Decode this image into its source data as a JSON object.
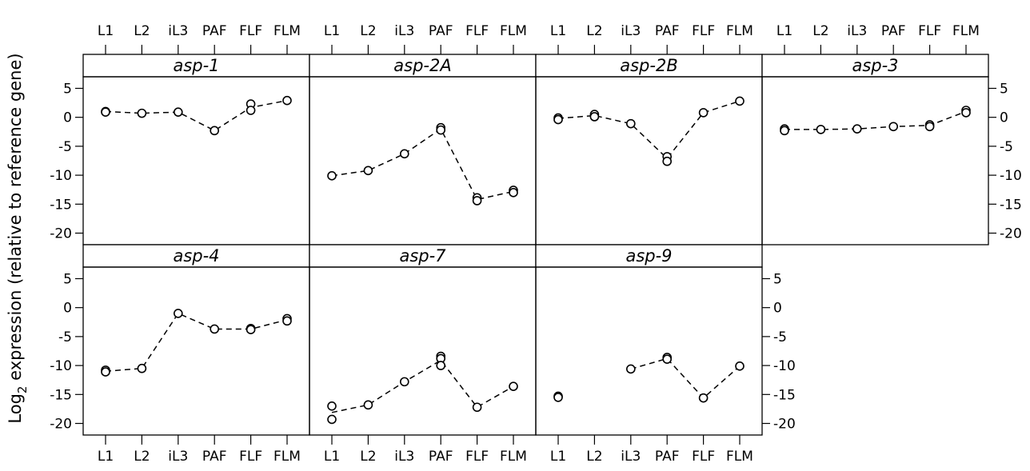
{
  "chart_data": {
    "type": "scatter",
    "ylabel": "Log",
    "ylabel_sub": "2",
    "ylabel_rest": " expression (relative to reference gene)",
    "categories": [
      "L1",
      "L2",
      "iL3",
      "PAF",
      "FLF",
      "FLM"
    ],
    "yticks": [
      5,
      0,
      -5,
      -10,
      -15,
      -20
    ],
    "ylim": [
      -22,
      7
    ],
    "line_style": "dashed",
    "marker": "open-circle",
    "panels": [
      {
        "name": "asp-1",
        "points": [
          [
            0,
            1.0
          ],
          [
            0,
            0.9
          ],
          [
            1,
            0.7
          ],
          [
            2,
            0.9
          ],
          [
            3,
            -2.3
          ],
          [
            4,
            2.3
          ],
          [
            4,
            1.2
          ],
          [
            5,
            2.9
          ]
        ],
        "line": [
          [
            0,
            1.0
          ],
          [
            1,
            0.7
          ],
          [
            2,
            0.9
          ],
          [
            3,
            -2.3
          ],
          [
            4,
            1.7
          ],
          [
            5,
            2.9
          ]
        ]
      },
      {
        "name": "asp-2A",
        "points": [
          [
            0,
            -10.1
          ],
          [
            1,
            -9.2
          ],
          [
            2,
            -6.3
          ],
          [
            3,
            -1.8
          ],
          [
            3,
            -2.2
          ],
          [
            4,
            -13.9
          ],
          [
            4,
            -14.4
          ],
          [
            5,
            -12.6
          ],
          [
            5,
            -13.0
          ]
        ],
        "line": [
          [
            0,
            -10.1
          ],
          [
            1,
            -9.2
          ],
          [
            2,
            -6.3
          ],
          [
            3,
            -2.0
          ],
          [
            4,
            -14.2
          ],
          [
            5,
            -12.8
          ]
        ]
      },
      {
        "name": "asp-2B",
        "points": [
          [
            0,
            -0.1
          ],
          [
            0,
            -0.4
          ],
          [
            1,
            0.5
          ],
          [
            1,
            0.1
          ],
          [
            2,
            -1.1
          ],
          [
            3,
            -6.8
          ],
          [
            3,
            -7.6
          ],
          [
            4,
            0.8
          ],
          [
            5,
            2.8
          ]
        ],
        "line": [
          [
            0,
            -0.2
          ],
          [
            1,
            0.3
          ],
          [
            2,
            -1.1
          ],
          [
            3,
            -7.1
          ],
          [
            4,
            0.8
          ],
          [
            5,
            2.8
          ]
        ]
      },
      {
        "name": "asp-3",
        "points": [
          [
            0,
            -2.0
          ],
          [
            0,
            -2.3
          ],
          [
            1,
            -2.1
          ],
          [
            2,
            -2.0
          ],
          [
            3,
            -1.6
          ],
          [
            4,
            -1.3
          ],
          [
            4,
            -1.6
          ],
          [
            5,
            1.2
          ],
          [
            5,
            0.8
          ]
        ],
        "line": [
          [
            0,
            -2.1
          ],
          [
            1,
            -2.1
          ],
          [
            2,
            -2.0
          ],
          [
            3,
            -1.6
          ],
          [
            4,
            -1.4
          ],
          [
            5,
            1.0
          ]
        ]
      },
      {
        "name": "asp-4",
        "points": [
          [
            0,
            -10.8
          ],
          [
            0,
            -11.1
          ],
          [
            1,
            -10.5
          ],
          [
            2,
            -1.0
          ],
          [
            3,
            -3.7
          ],
          [
            4,
            -3.6
          ],
          [
            4,
            -3.8
          ],
          [
            5,
            -1.9
          ],
          [
            5,
            -2.3
          ]
        ],
        "line": [
          [
            0,
            -11.0
          ],
          [
            1,
            -10.5
          ],
          [
            2,
            -1.0
          ],
          [
            3,
            -3.7
          ],
          [
            4,
            -3.7
          ],
          [
            5,
            -2.1
          ]
        ]
      },
      {
        "name": "asp-7",
        "points": [
          [
            0,
            -17.0
          ],
          [
            0,
            -19.3
          ],
          [
            1,
            -16.8
          ],
          [
            2,
            -12.8
          ],
          [
            3,
            -8.4
          ],
          [
            3,
            -8.8
          ],
          [
            3,
            -10.0
          ],
          [
            4,
            -17.2
          ],
          [
            5,
            -13.6
          ]
        ],
        "line": [
          [
            0,
            -18.1
          ],
          [
            1,
            -16.8
          ],
          [
            2,
            -12.8
          ],
          [
            3,
            -9.1
          ],
          [
            4,
            -17.2
          ],
          [
            5,
            -13.6
          ]
        ]
      },
      {
        "name": "asp-9",
        "points": [
          [
            0,
            -15.3
          ],
          [
            0,
            -15.5
          ],
          [
            2,
            -10.6
          ],
          [
            3,
            -8.6
          ],
          [
            3,
            -8.9
          ],
          [
            4,
            -15.6
          ],
          [
            5,
            -10.1
          ]
        ],
        "line": [
          [
            2,
            -10.6
          ],
          [
            3,
            -8.8
          ],
          [
            4,
            -15.6
          ],
          [
            5,
            -10.1
          ]
        ]
      }
    ]
  }
}
